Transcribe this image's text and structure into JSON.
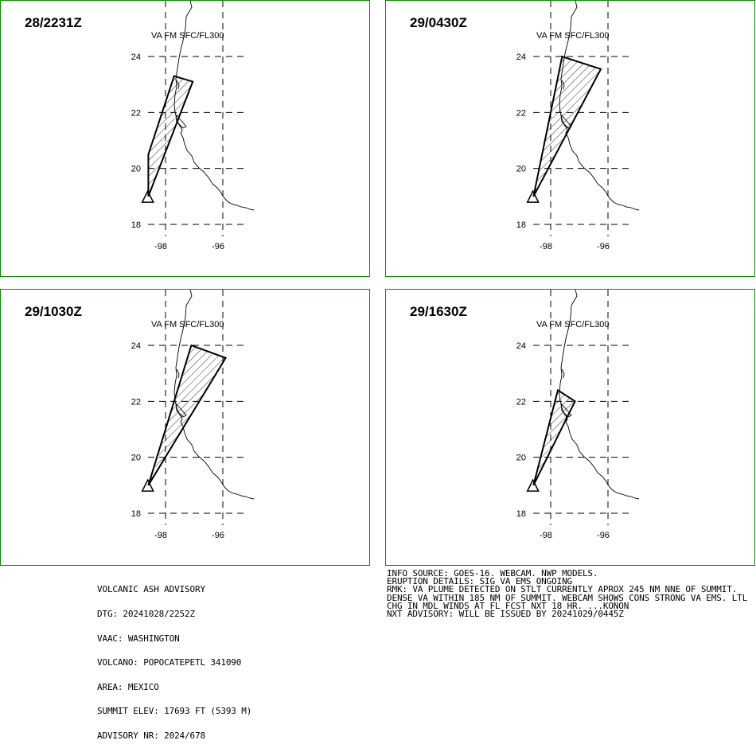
{
  "panels": [
    {
      "time": "28/2231Z",
      "level": "VA FM SFC/FL300",
      "polygon": [
        [
          -98.6,
          19.0
        ],
        [
          -98.6,
          20.5
        ],
        [
          -97.7,
          23.3
        ],
        [
          -97.05,
          23.1
        ],
        [
          -98.6,
          19.0
        ]
      ]
    },
    {
      "time": "29/0430Z",
      "level": "VA FM SFC/FL300",
      "polygon": [
        [
          -98.6,
          19.0
        ],
        [
          -97.6,
          24.0
        ],
        [
          -96.25,
          23.55
        ],
        [
          -98.6,
          19.0
        ]
      ]
    },
    {
      "time": "29/1030Z",
      "level": "VA FM SFC/FL300",
      "polygon": [
        [
          -98.6,
          19.0
        ],
        [
          -97.1,
          24.0
        ],
        [
          -95.9,
          23.55
        ],
        [
          -98.6,
          19.0
        ]
      ]
    },
    {
      "time": "29/1630Z",
      "level": "VA FM SFC/FL300",
      "polygon": [
        [
          -98.6,
          19.0
        ],
        [
          -97.75,
          22.4
        ],
        [
          -97.15,
          22.0
        ],
        [
          -98.6,
          19.0
        ]
      ]
    }
  ],
  "axes": {
    "lat_labels": [
      "24",
      "22",
      "20",
      "18"
    ],
    "lon_labels": [
      "-98",
      "-96"
    ],
    "lat_ticks": [
      24,
      22,
      20,
      18
    ],
    "lon_ticks": [
      -98,
      -96
    ]
  },
  "volcano": {
    "lat": 19.02,
    "lon": -98.62
  },
  "footer": {
    "left_lines": [
      "VOLCANIC ASH ADVISORY",
      "DTG: 20241028/2252Z",
      "VAAC: WASHINGTON",
      "VOLCANO: POPOCATEPETL 341090",
      "AREA: MEXICO",
      "SUMMIT ELEV: 17693 FT (5393 M)",
      "ADVISORY NR: 2024/678"
    ],
    "right_lines": [
      "INFO SOURCE: GOES-16. WEBCAM. NWP MODELS.",
      "ERUPTION DETAILS: SIG VA EMS ONGOING",
      "RMK: VA PLUME DETECTED ON STLT CURRENTLY APROX 245 NM NNE OF SUMMIT. DENSE VA WITHIN 185 NM OF SUMMIT. WEBCAM SHOWS CONS STRONG VA EMS. LTL CHG IN MDL WINDS AT FL FCST NXT 18 HR. ...KONON",
      "NXT ADVISORY: WILL BE ISSUED BY 20241029/0445Z"
    ]
  }
}
